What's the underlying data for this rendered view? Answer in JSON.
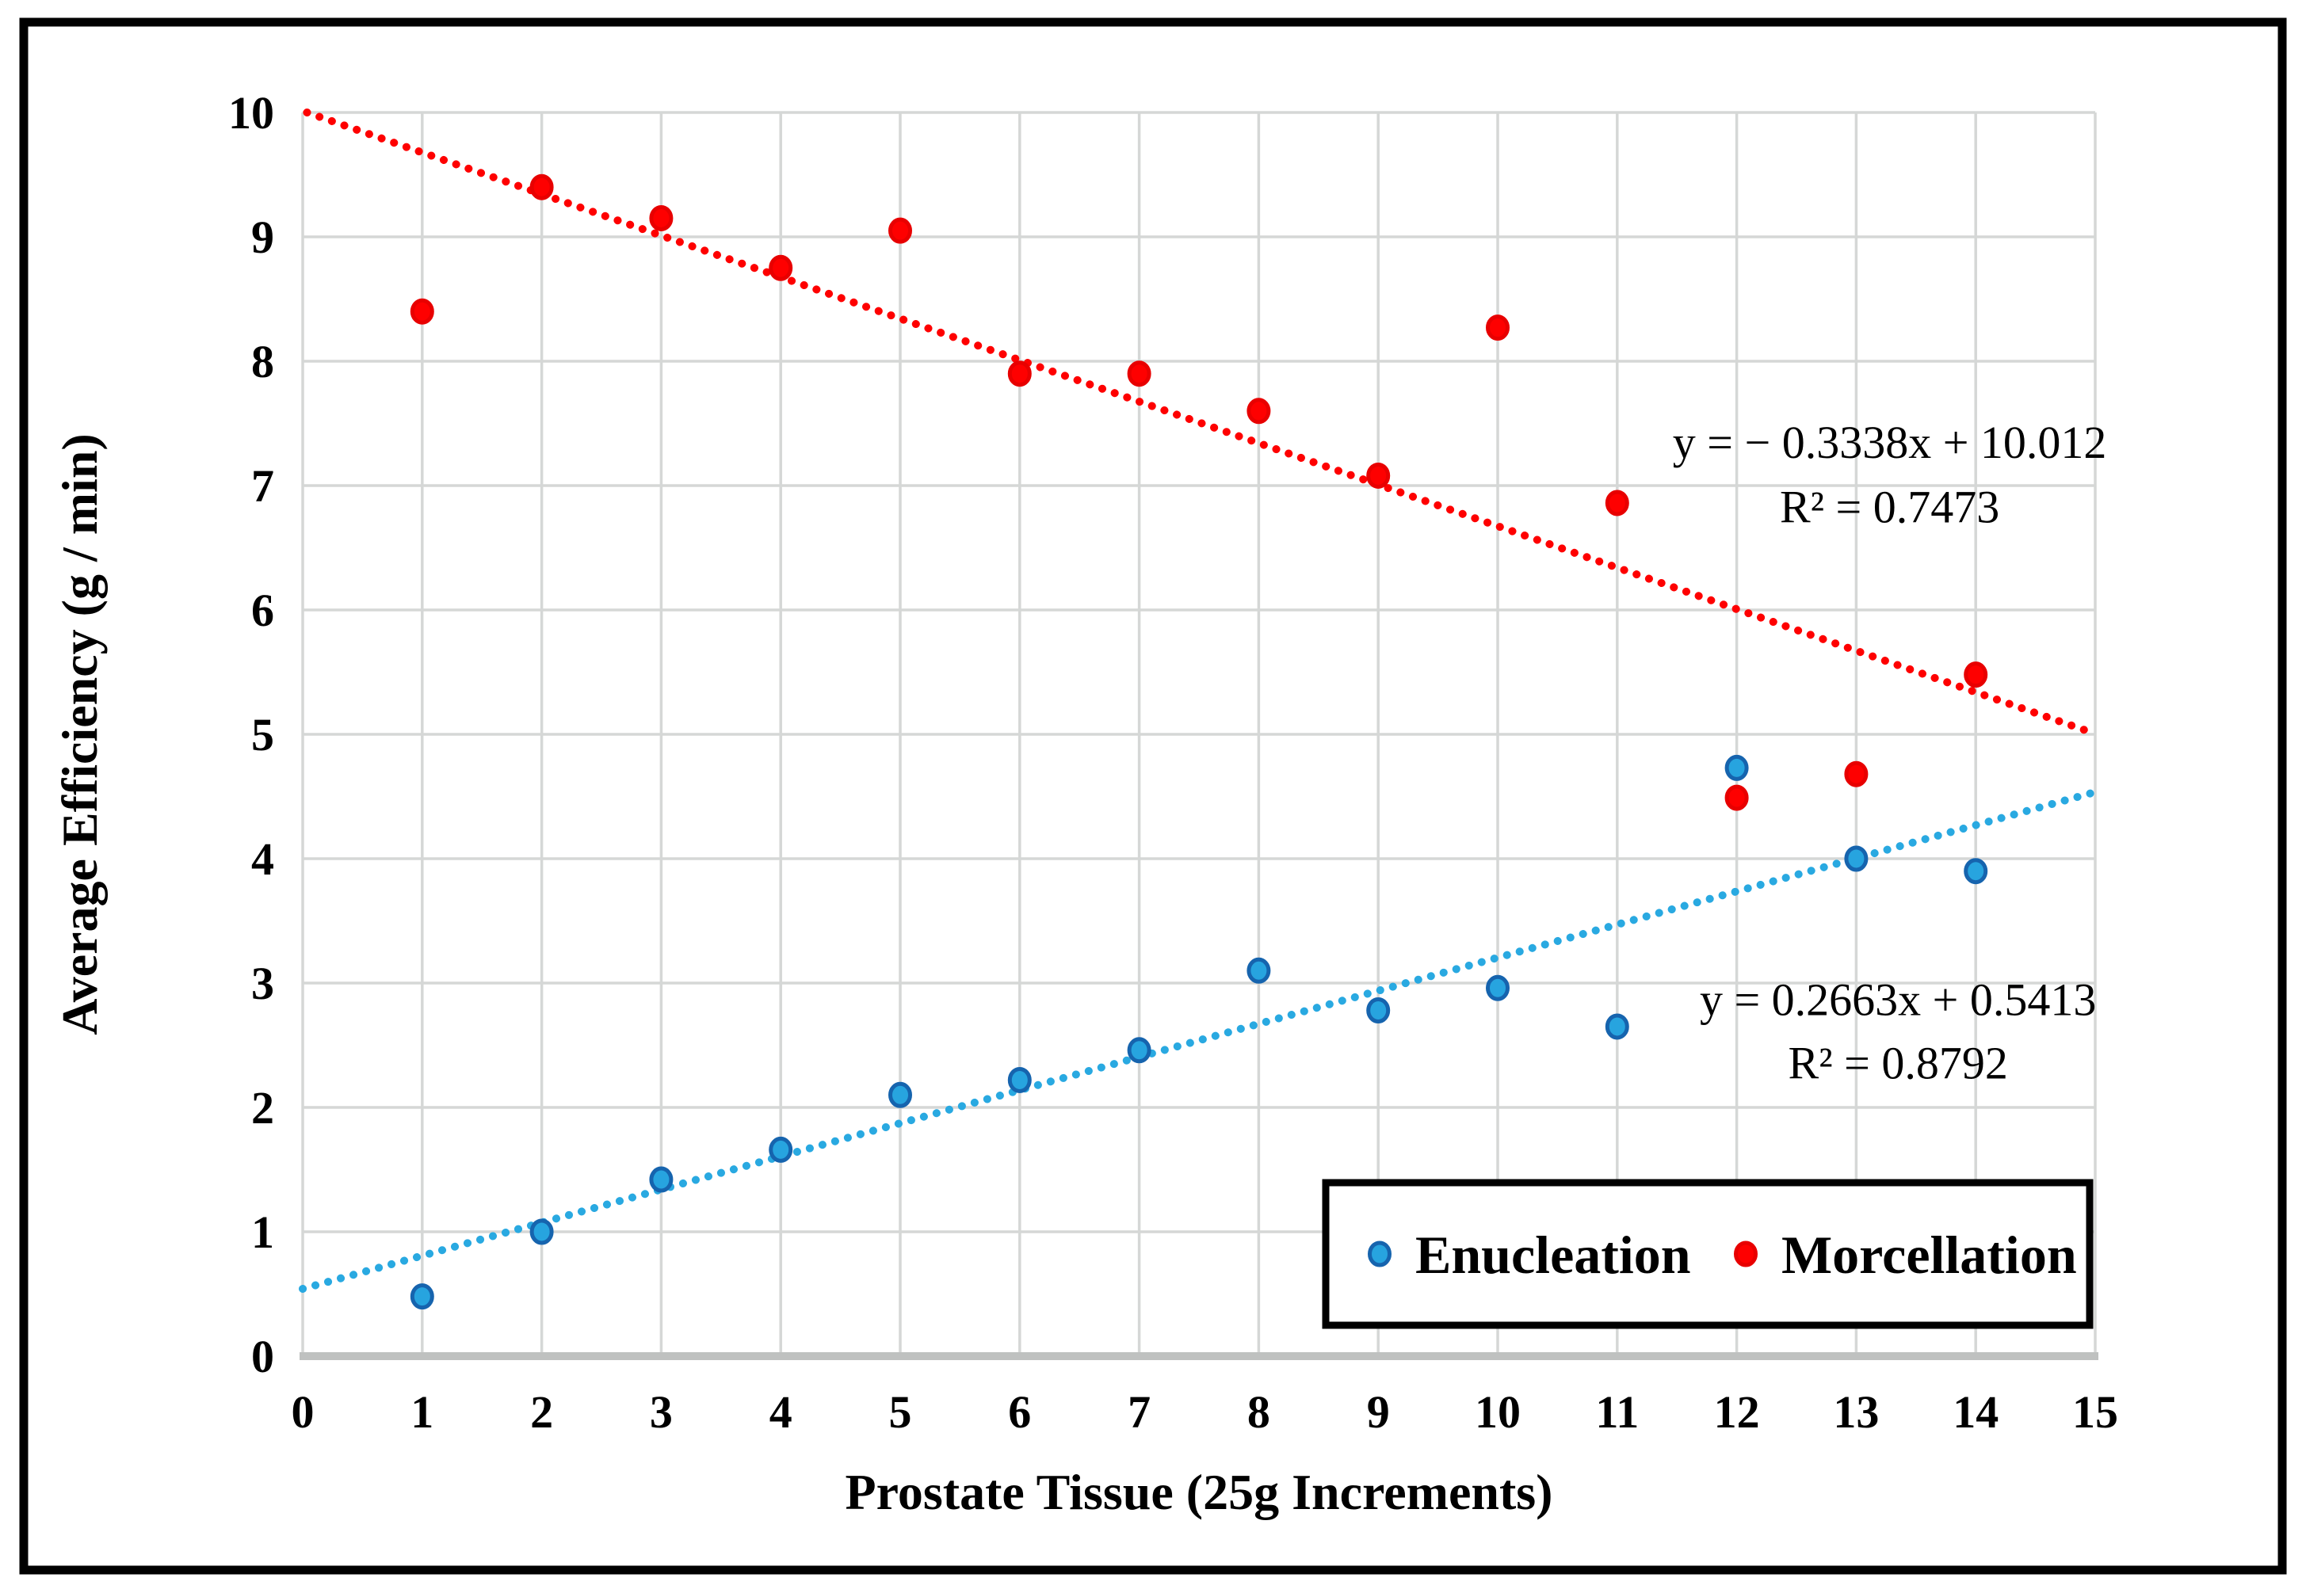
{
  "figure": {
    "background": "#ffffff",
    "border_color": "#000000",
    "grid_color": "#D5D7D6",
    "axis_line_color": "#BFC1C0",
    "text_color": "#000000"
  },
  "chart_data": {
    "type": "scatter",
    "title": "",
    "xlabel": "Prostate Tissue (25g Increments)",
    "ylabel": "Average Efficiency  (g / min)",
    "xlim": [
      0,
      15
    ],
    "ylim": [
      0,
      10
    ],
    "x_ticks": [
      0,
      1,
      2,
      3,
      4,
      5,
      6,
      7,
      8,
      9,
      10,
      11,
      12,
      13,
      14,
      15
    ],
    "y_ticks": [
      0,
      1,
      2,
      3,
      4,
      5,
      6,
      7,
      8,
      9,
      10
    ],
    "grid": true,
    "legend_position": "bottom-right",
    "series": [
      {
        "name": "Enucleation",
        "marker": "circle",
        "fill_color": "#27A4DF",
        "edge_color": "#1664AE",
        "trend_color": "#29A9E1",
        "x": [
          1,
          2,
          3,
          4,
          5,
          6,
          7,
          8,
          9,
          10,
          11,
          12,
          13,
          14
        ],
        "y": [
          0.48,
          1.0,
          1.42,
          1.66,
          2.1,
          2.22,
          2.46,
          3.1,
          2.78,
          2.96,
          2.65,
          4.73,
          4.0,
          3.9
        ],
        "trendline": {
          "style": "dotted",
          "slope": 0.2663,
          "intercept": 0.5413,
          "r2": 0.8792,
          "equation_label": "y = 0.2663x + 0.5413",
          "r2_label": "R² = 0.8792",
          "equation_pos": {
            "x": 13.35,
            "y": 2.87
          },
          "r2_pos": {
            "x": 13.35,
            "y": 2.36
          }
        }
      },
      {
        "name": "Morcellation",
        "marker": "circle",
        "fill_color": "#FE0000",
        "edge_color": "#E80000",
        "trend_color": "#FE0000",
        "x": [
          1,
          2,
          3,
          4,
          5,
          6,
          7,
          8,
          9,
          10,
          11,
          12,
          13,
          14
        ],
        "y": [
          8.4,
          9.4,
          9.15,
          8.75,
          9.05,
          7.9,
          7.9,
          7.6,
          7.08,
          8.27,
          6.86,
          4.49,
          4.68,
          5.48
        ],
        "trendline": {
          "style": "dotted",
          "slope": -0.3338,
          "intercept": 10.012,
          "r2": 0.7473,
          "equation_label": "y = − 0.3338x + 10.012",
          "r2_label": "R² = 0.7473",
          "equation_pos": {
            "x": 13.28,
            "y": 7.35
          },
          "r2_pos": {
            "x": 13.28,
            "y": 6.83
          }
        }
      }
    ]
  },
  "legend": {
    "items": [
      {
        "label": "Enucleation"
      },
      {
        "label": "Morcellation"
      }
    ]
  }
}
